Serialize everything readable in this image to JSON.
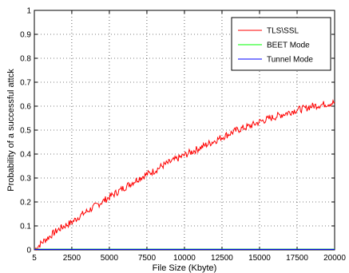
{
  "chart_data": {
    "type": "line",
    "title": "",
    "xlabel": "File Size (Kbyte)",
    "ylabel": "Probability of a successful attck",
    "xlim": [
      5,
      20000
    ],
    "ylim": [
      0,
      1
    ],
    "xticks": [
      5,
      2500,
      5000,
      7500,
      10000,
      12500,
      15000,
      17500,
      20000
    ],
    "yticks": [
      0,
      0.1,
      0.2,
      0.3,
      0.4,
      0.5,
      0.6,
      0.7,
      0.8,
      0.9,
      1
    ],
    "grid": true,
    "legend_position": "top-right",
    "series": [
      {
        "name": "TLS\\SSL",
        "color": "#ff0000",
        "noisy": true,
        "x": [
          5,
          500,
          1000,
          1500,
          2000,
          2500,
          3000,
          3500,
          4000,
          4500,
          5000,
          5500,
          6000,
          6500,
          7000,
          7500,
          8000,
          8500,
          9000,
          9500,
          10000,
          10500,
          11000,
          11500,
          12000,
          12500,
          13000,
          13500,
          14000,
          14500,
          15000,
          15500,
          16000,
          16500,
          17000,
          17500,
          18000,
          18500,
          19000,
          19500,
          20000
        ],
        "y": [
          0.0,
          0.03,
          0.055,
          0.08,
          0.1,
          0.115,
          0.14,
          0.16,
          0.18,
          0.2,
          0.22,
          0.24,
          0.26,
          0.28,
          0.3,
          0.315,
          0.33,
          0.35,
          0.365,
          0.38,
          0.395,
          0.41,
          0.425,
          0.44,
          0.455,
          0.47,
          0.485,
          0.5,
          0.51,
          0.52,
          0.535,
          0.545,
          0.555,
          0.565,
          0.575,
          0.585,
          0.59,
          0.6,
          0.605,
          0.61,
          0.615
        ]
      },
      {
        "name": "BEET Mode",
        "color": "#00ff00",
        "noisy": false,
        "x": [
          5,
          20000
        ],
        "y": [
          0.003,
          0.003
        ]
      },
      {
        "name": "Tunnel Mode",
        "color": "#0000ff",
        "noisy": false,
        "x": [
          5,
          20000
        ],
        "y": [
          0.002,
          0.002
        ]
      }
    ]
  }
}
